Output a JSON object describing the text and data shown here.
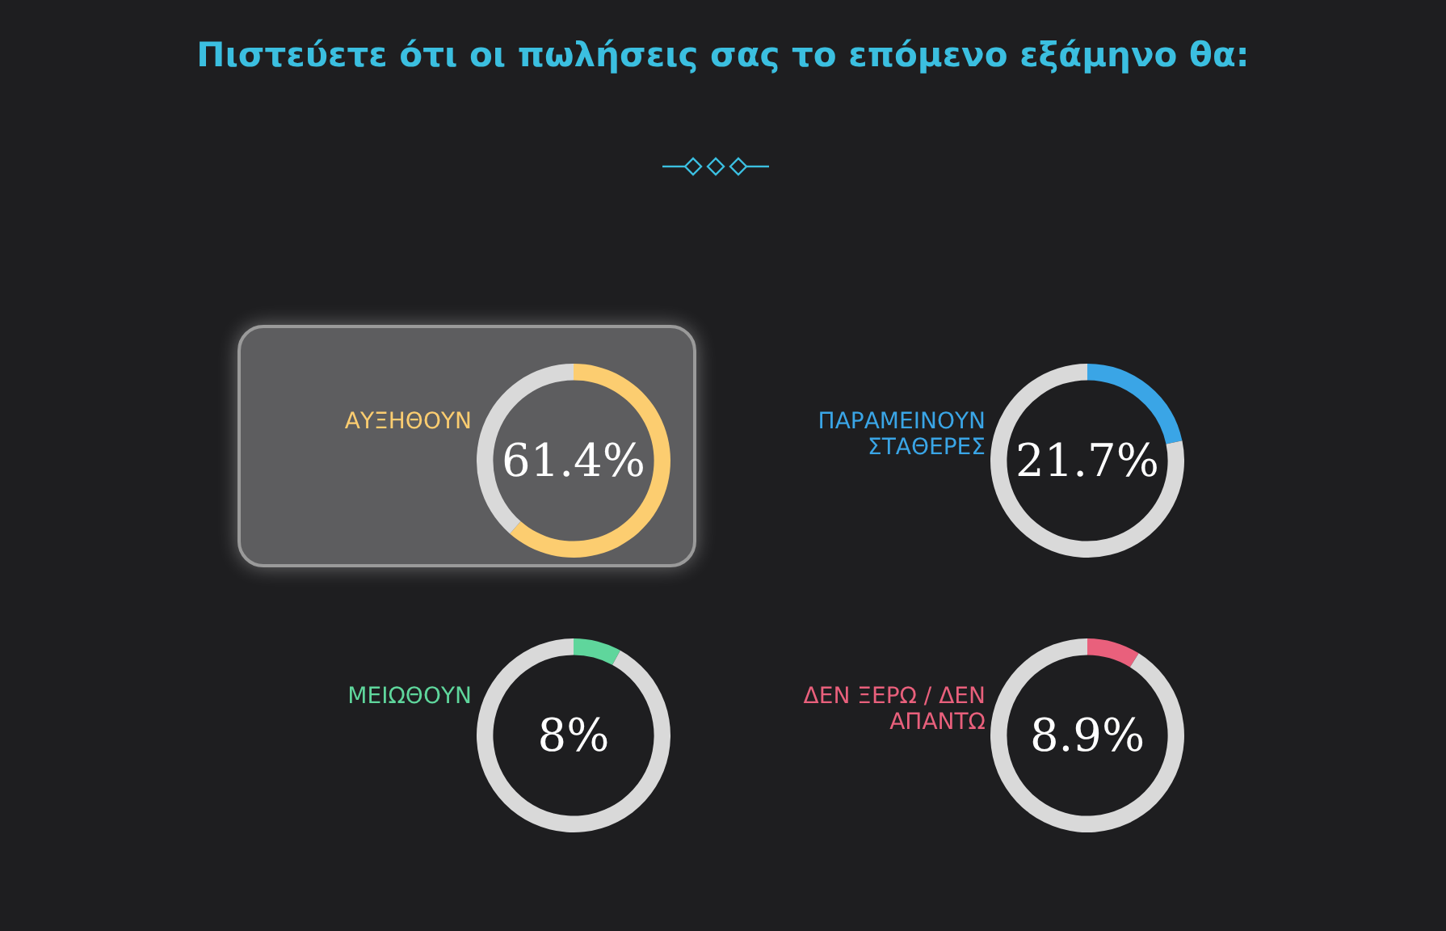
{
  "chart_data": [
    {
      "type": "other",
      "title": "Πιστεύετε ότι οι πωλήσεις σας το επόμενο εξάμηνο θα:"
    },
    {
      "type": "donut",
      "title": "ΑΥΞΗΘΟΥΝ",
      "categories": [
        null,
        null
      ],
      "values": [
        61.4,
        38.6
      ],
      "colors": [
        "#fccd70",
        "#d9d9d9"
      ],
      "value_labels": [
        "61.4%",
        null
      ]
    },
    {
      "type": "donut",
      "title": "ΠΑΡΑΜΕΙΝΟΥΝ ΣΤΑΘΕΡΕΣ",
      "categories": [
        null,
        null
      ],
      "values": [
        21.7,
        78.3
      ],
      "colors": [
        "#3aa5e6",
        "#d9d9d9"
      ],
      "value_labels": [
        "21.7%",
        null
      ]
    },
    {
      "type": "donut",
      "title": "ΜΕΙΩΘΟΥΝ",
      "categories": [
        null,
        null
      ],
      "values": [
        8,
        92
      ],
      "colors": [
        "#5fd69c",
        "#d9d9d9"
      ],
      "value_labels": [
        "8%",
        null
      ]
    },
    {
      "type": "donut",
      "title": "ΔΕΝ ΞΕΡΩ / ΔΕΝ ΑΠΑΝΤΩ",
      "categories": [
        null,
        null
      ],
      "values": [
        8.9,
        91.1
      ],
      "colors": [
        "#e9607c",
        "#d9d9d9"
      ],
      "value_labels": [
        "8.9%",
        null
      ]
    }
  ]
}
